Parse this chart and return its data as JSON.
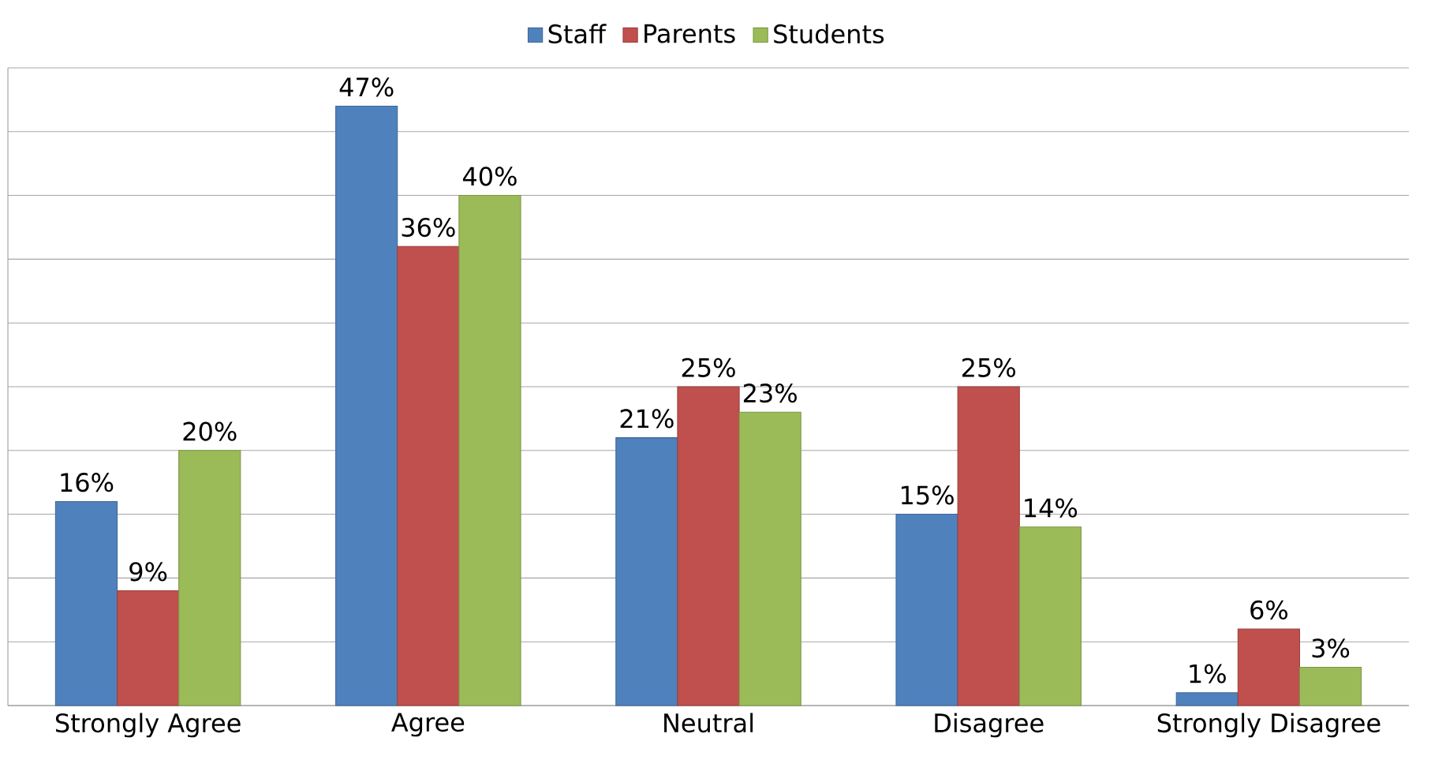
{
  "chart_data": {
    "type": "bar",
    "categories": [
      "Strongly Agree",
      "Agree",
      "Neutral",
      "Disagree",
      "Strongly Disagree"
    ],
    "series": [
      {
        "name": "Staff",
        "color": "#4f81bd",
        "values": [
          16,
          47,
          21,
          15,
          1
        ],
        "value_labels": [
          "16%",
          "47%",
          "21%",
          "15%",
          "1%"
        ]
      },
      {
        "name": "Parents",
        "color": "#c0504d",
        "values": [
          9,
          36,
          25,
          25,
          6
        ],
        "value_labels": [
          "9%",
          "36%",
          "25%",
          "25%",
          "6%"
        ]
      },
      {
        "name": "Students",
        "color": "#9bbb59",
        "values": [
          20,
          40,
          23,
          14,
          3
        ],
        "value_labels": [
          "20%",
          "40%",
          "23%",
          "14%",
          "3%"
        ]
      }
    ],
    "ylim": [
      0,
      50
    ],
    "yticks": [
      0,
      5,
      10,
      15,
      20,
      25,
      30,
      35,
      40,
      45,
      50
    ],
    "tick_labels": "x",
    "grid": "y",
    "legend": "top"
  }
}
